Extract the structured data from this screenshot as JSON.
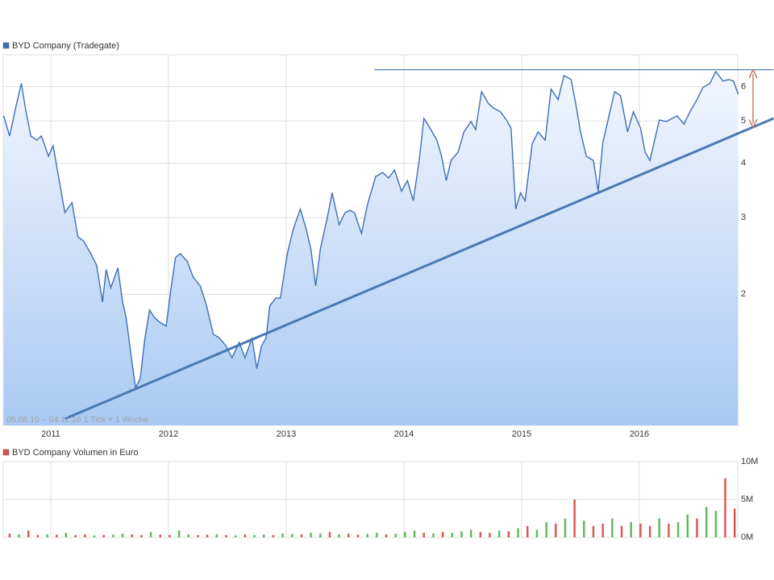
{
  "chart_data": [
    {
      "type": "line",
      "log": true,
      "grid": true,
      "annotation": "05.08.10 – 04.11.16   1 Tick = 1 Woche",
      "xlim": [
        2010.596,
        2016.836
      ],
      "xticks": [
        2011,
        2012,
        2013,
        2014,
        2015,
        2016
      ],
      "ylim": [
        1,
        7.1
      ],
      "yticks": [
        2,
        3,
        4,
        5,
        6
      ],
      "x": [
        2010.6,
        2010.65,
        2010.71,
        2010.75,
        2010.79,
        2010.83,
        2010.88,
        2010.92,
        2010.98,
        2011.02,
        2011.06,
        2011.12,
        2011.18,
        2011.23,
        2011.28,
        2011.34,
        2011.39,
        2011.44,
        2011.47,
        2011.51,
        2011.57,
        2011.61,
        2011.64,
        2011.68,
        2011.72,
        2011.76,
        2011.8,
        2011.84,
        2011.88,
        2011.92,
        2011.98,
        2012.02,
        2012.06,
        2012.1,
        2012.16,
        2012.21,
        2012.27,
        2012.32,
        2012.38,
        2012.43,
        2012.49,
        2012.54,
        2012.6,
        2012.65,
        2012.71,
        2012.75,
        2012.79,
        2012.83,
        2012.86,
        2012.91,
        2012.95,
        2013.01,
        2013.06,
        2013.12,
        2013.17,
        2013.21,
        2013.25,
        2013.29,
        2013.35,
        2013.39,
        2013.45,
        2013.5,
        2013.54,
        2013.58,
        2013.64,
        2013.69,
        2013.76,
        2013.82,
        2013.87,
        2013.92,
        2013.98,
        2014.03,
        2014.08,
        2014.13,
        2014.17,
        2014.23,
        2014.28,
        2014.32,
        2014.36,
        2014.4,
        2014.46,
        2014.51,
        2014.57,
        2014.61,
        2014.66,
        2014.72,
        2014.76,
        2014.82,
        2014.87,
        2014.91,
        2014.95,
        2014.99,
        2015.03,
        2015.09,
        2015.14,
        2015.2,
        2015.25,
        2015.31,
        2015.36,
        2015.42,
        2015.46,
        2015.5,
        2015.55,
        2015.61,
        2015.65,
        2015.69,
        2015.75,
        2015.79,
        2015.84,
        2015.9,
        2015.95,
        2016.01,
        2016.05,
        2016.09,
        2016.13,
        2016.17,
        2016.23,
        2016.28,
        2016.32,
        2016.38,
        2016.43,
        2016.49,
        2016.54,
        2016.6,
        2016.65,
        2016.71,
        2016.76,
        2016.8,
        2016.84
      ],
      "series": [
        {
          "name": "BYD Company (Tradegate)",
          "color": "#3d6fb6",
          "values": [
            5.14,
            4.62,
            5.48,
            6.1,
            5.25,
            4.62,
            4.52,
            4.62,
            4.15,
            4.39,
            3.81,
            3.08,
            3.25,
            2.71,
            2.65,
            2.48,
            2.33,
            1.92,
            2.28,
            2.07,
            2.3,
            1.92,
            1.77,
            1.46,
            1.22,
            1.28,
            1.59,
            1.84,
            1.77,
            1.73,
            1.69,
            2.05,
            2.43,
            2.48,
            2.38,
            2.19,
            2.09,
            1.9,
            1.62,
            1.59,
            1.52,
            1.43,
            1.55,
            1.43,
            1.59,
            1.35,
            1.52,
            1.59,
            1.88,
            1.96,
            1.96,
            2.48,
            2.82,
            3.14,
            2.82,
            2.54,
            2.09,
            2.54,
            3.01,
            3.42,
            2.89,
            3.08,
            3.12,
            3.08,
            2.76,
            3.21,
            3.73,
            3.81,
            3.7,
            3.86,
            3.45,
            3.65,
            3.28,
            4.06,
            5.07,
            4.78,
            4.52,
            4.15,
            3.65,
            4.06,
            4.24,
            4.72,
            4.99,
            4.78,
            5.84,
            5.48,
            5.36,
            5.25,
            5.03,
            4.82,
            3.14,
            3.42,
            3.28,
            4.43,
            4.72,
            4.52,
            5.92,
            5.6,
            6.36,
            6.23,
            5.48,
            4.72,
            4.15,
            4.06,
            3.45,
            4.46,
            5.25,
            5.84,
            5.72,
            4.72,
            5.25,
            4.82,
            4.24,
            4.06,
            4.52,
            5.03,
            4.99,
            5.07,
            5.14,
            4.92,
            5.25,
            5.6,
            5.97,
            6.1,
            6.5,
            6.18,
            6.23,
            6.18,
            5.77
          ]
        }
      ],
      "trendlines": [
        {
          "color": "#4a78b2",
          "x": [
            2011.12,
            2017.14
          ],
          "y": [
            1.035,
            5.07
          ]
        },
        {
          "color": "#4a78b2",
          "x": [
            2013.75,
            2017.14
          ],
          "y": [
            6.56,
            6.56
          ]
        }
      ]
    },
    {
      "type": "bar",
      "grid": true,
      "xlim": [
        2010.596,
        2016.836
      ],
      "xticks": [
        2011,
        2012,
        2013,
        2014,
        2015,
        2016
      ],
      "ylim": [
        0,
        10000000
      ],
      "yticks": [
        {
          "value": 0,
          "label": "0M"
        },
        {
          "value": 5000000,
          "label": "5M"
        },
        {
          "value": 10000000,
          "label": "10M"
        }
      ],
      "x": [
        2010.65,
        2010.73,
        2010.81,
        2010.89,
        2010.97,
        2011.05,
        2011.13,
        2011.21,
        2011.29,
        2011.37,
        2011.45,
        2011.53,
        2011.61,
        2011.69,
        2011.77,
        2011.85,
        2011.93,
        2012.01,
        2012.09,
        2012.17,
        2012.25,
        2012.33,
        2012.41,
        2012.49,
        2012.57,
        2012.65,
        2012.73,
        2012.81,
        2012.89,
        2012.97,
        2013.05,
        2013.13,
        2013.21,
        2013.29,
        2013.37,
        2013.45,
        2013.53,
        2013.61,
        2013.69,
        2013.77,
        2013.85,
        2013.93,
        2014.01,
        2014.09,
        2014.17,
        2014.25,
        2014.33,
        2014.41,
        2014.49,
        2014.57,
        2014.65,
        2014.73,
        2014.81,
        2014.89,
        2014.97,
        2015.05,
        2015.13,
        2015.21,
        2015.29,
        2015.37,
        2015.45,
        2015.53,
        2015.61,
        2015.69,
        2015.77,
        2015.85,
        2015.93,
        2016.01,
        2016.09,
        2016.17,
        2016.25,
        2016.33,
        2016.41,
        2016.49,
        2016.57,
        2016.65,
        2016.73,
        2016.81
      ],
      "series": [
        {
          "name": "BYD Company Volumen in Euro",
          "color": "#d9534f",
          "values": [
            500000,
            400000,
            900000,
            300000,
            400000,
            350000,
            600000,
            300000,
            400000,
            250000,
            300000,
            350000,
            500000,
            400000,
            300000,
            700000,
            350000,
            300000,
            900000,
            400000,
            300000,
            350000,
            400000,
            300000,
            250000,
            400000,
            300000,
            350000,
            300000,
            500000,
            450000,
            400000,
            600000,
            500000,
            700000,
            400000,
            500000,
            350000,
            450000,
            600000,
            400000,
            500000,
            700000,
            900000,
            600000,
            500000,
            700000,
            600000,
            800000,
            1000000,
            700000,
            600000,
            900000,
            800000,
            1200000,
            1500000,
            1000000,
            2000000,
            1800000,
            2500000,
            5000000,
            2200000,
            1500000,
            1800000,
            2500000,
            1500000,
            2000000,
            1800000,
            1500000,
            2500000,
            1800000,
            2000000,
            3000000,
            2500000,
            4000000,
            3500000,
            7800000,
            3800000
          ],
          "colors": [
            "#d9534f",
            "#5cb85c",
            "#d9534f",
            "#d9534f",
            "#5cb85c",
            "#d9534f",
            "#5cb85c",
            "#d9534f",
            "#d9534f",
            "#5cb85c",
            "#d9534f",
            "#5cb85c",
            "#5cb85c",
            "#d9534f",
            "#d9534f",
            "#5cb85c",
            "#d9534f",
            "#d9534f",
            "#5cb85c",
            "#5cb85c",
            "#d9534f",
            "#d9534f",
            "#5cb85c",
            "#d9534f",
            "#5cb85c",
            "#d9534f",
            "#5cb85c",
            "#5cb85c",
            "#d9534f",
            "#5cb85c",
            "#5cb85c",
            "#d9534f",
            "#5cb85c",
            "#5cb85c",
            "#d9534f",
            "#5cb85c",
            "#d9534f",
            "#d9534f",
            "#5cb85c",
            "#5cb85c",
            "#d9534f",
            "#5cb85c",
            "#5cb85c",
            "#5cb85c",
            "#d9534f",
            "#5cb85c",
            "#d9534f",
            "#5cb85c",
            "#5cb85c",
            "#5cb85c",
            "#d9534f",
            "#d9534f",
            "#5cb85c",
            "#d9534f",
            "#5cb85c",
            "#d9534f",
            "#5cb85c",
            "#5cb85c",
            "#d9534f",
            "#5cb85c",
            "#d9534f",
            "#5cb85c",
            "#d9534f",
            "#d9534f",
            "#5cb85c",
            "#d9534f",
            "#5cb85c",
            "#d9534f",
            "#d9534f",
            "#5cb85c",
            "#d9534f",
            "#5cb85c",
            "#5cb85c",
            "#d9534f",
            "#5cb85c",
            "#5cb85c",
            "#d9534f",
            "#d9534f"
          ]
        }
      ]
    }
  ]
}
